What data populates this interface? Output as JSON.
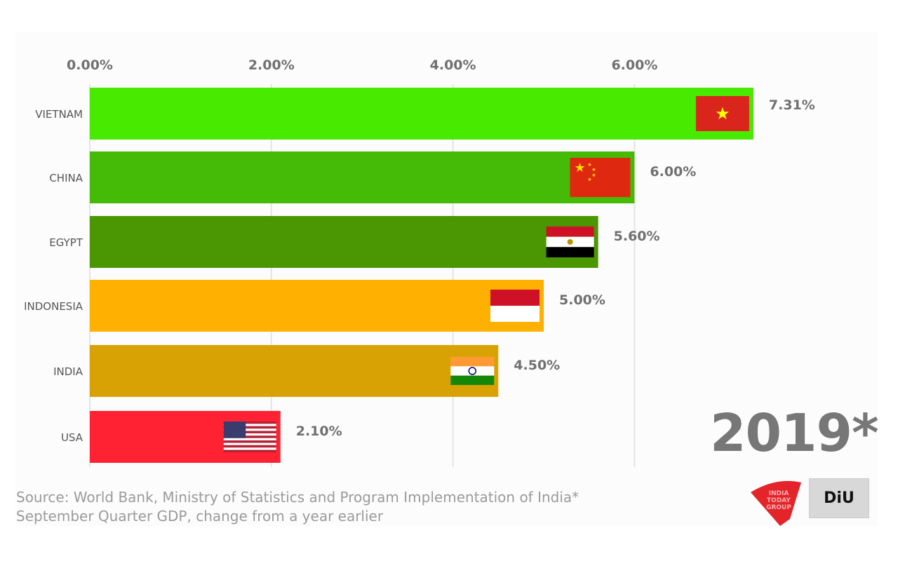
{
  "chart_data": {
    "type": "bar",
    "orientation": "horizontal",
    "categories": [
      "VIETNAM",
      "CHINA",
      "EGYPT",
      "INDONESIA",
      "INDIA",
      "USA"
    ],
    "values": [
      7.31,
      6.0,
      5.6,
      5.0,
      4.5,
      2.1
    ],
    "value_labels": [
      "7.31%",
      "6.00%",
      "5.60%",
      "5.00%",
      "4.50%",
      "2.10%"
    ],
    "colors": [
      "#48ea00",
      "#45bb07",
      "#4a9603",
      "#ffb000",
      "#d9a204",
      "#ff2232"
    ],
    "flags": [
      "vietnam-flag",
      "china-flag",
      "egypt-flag",
      "indonesia-flag",
      "india-flag",
      "usa-flag"
    ],
    "xticks": [
      0,
      2,
      4,
      6
    ],
    "xtick_labels": [
      "0.00%",
      "2.00%",
      "4.00%",
      "6.00%"
    ],
    "xlim": [
      0,
      7.31
    ],
    "axis_position": "top",
    "grid": true
  },
  "year_label": "2019*",
  "source_line1": "Source: World Bank, Ministry of Statistics and Program Implementation of India*",
  "source_line2": "September Quarter GDP, change from a year earlier",
  "logos": {
    "india_today": "INDIA TODAY GROUP",
    "diu": "DiU"
  }
}
